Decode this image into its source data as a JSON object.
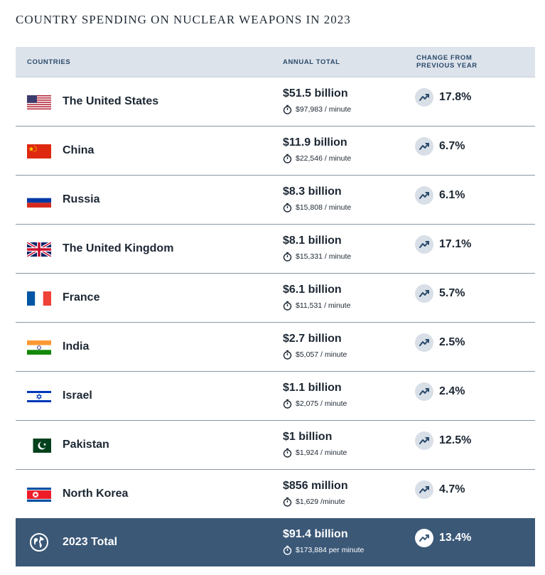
{
  "title": "COUNTRY SPENDING ON NUCLEAR WEAPONS IN 2023",
  "headers": {
    "countries": "COUNTRIES",
    "annual_total": "ANNUAL TOTAL",
    "change_line1": "CHANGE FROM",
    "change_line2": "PREVIOUS YEAR"
  },
  "rows": [
    {
      "country": "The United States",
      "flag": "us-flag-icon",
      "total": "$51.5 billion",
      "per_minute": "$97,983 / minute",
      "change": "17.8%"
    },
    {
      "country": "China",
      "flag": "china-flag-icon",
      "total": "$11.9 billion",
      "per_minute": "$22,546 / minute",
      "change": "6.7%"
    },
    {
      "country": "Russia",
      "flag": "russia-flag-icon",
      "total": "$8.3 billion",
      "per_minute": "$15,808 / minute",
      "change": "6.1%"
    },
    {
      "country": "The United Kingdom",
      "flag": "uk-flag-icon",
      "total": "$8.1 billion",
      "per_minute": "$15,331 / minute",
      "change": "17.1%"
    },
    {
      "country": "France",
      "flag": "france-flag-icon",
      "total": "$6.1 billion",
      "per_minute": "$11,531 / minute",
      "change": "5.7%"
    },
    {
      "country": "India",
      "flag": "india-flag-icon",
      "total": "$2.7 billion",
      "per_minute": "$5,057 / minute",
      "change": "2.5%"
    },
    {
      "country": "Israel",
      "flag": "israel-flag-icon",
      "total": "$1.1 billion",
      "per_minute": "$2,075 / minute",
      "change": "2.4%"
    },
    {
      "country": "Pakistan",
      "flag": "pakistan-flag-icon",
      "total": "$1 billion",
      "per_minute": "$1,924 / minute",
      "change": "12.5%"
    },
    {
      "country": "North Korea",
      "flag": "north-korea-flag-icon",
      "total": "$856 million",
      "per_minute": "$1,629 /minute",
      "change": "4.7%"
    }
  ],
  "total": {
    "label": "2023 Total",
    "icon": "globe-icon",
    "total": "$91.4 billion",
    "per_minute": "$173,884 per minute",
    "change": "13.4%"
  },
  "colors": {
    "header_bg": "#dde3eb",
    "header_text": "#2a4a6b",
    "total_bg": "#3b5877",
    "divider": "#8a96a3"
  },
  "chart_data": {
    "type": "table",
    "title": "COUNTRY SPENDING ON NUCLEAR WEAPONS IN 2023",
    "columns": [
      "COUNTRIES",
      "ANNUAL TOTAL",
      "CHANGE FROM PREVIOUS YEAR"
    ],
    "categories": [
      "The United States",
      "China",
      "Russia",
      "The United Kingdom",
      "France",
      "India",
      "Israel",
      "Pakistan",
      "North Korea"
    ],
    "series": [
      {
        "name": "ANNUAL TOTAL",
        "values": [
          51.5,
          11.9,
          8.3,
          8.1,
          6.1,
          2.7,
          1.1,
          1.0,
          0.856
        ]
      },
      {
        "name": "CHANGE FROM PREVIOUS YEAR",
        "values": [
          17.8,
          6.7,
          6.1,
          17.1,
          5.7,
          2.5,
          2.4,
          12.5,
          4.7
        ]
      }
    ],
    "per_minute": [
      97983,
      22546,
      15808,
      15331,
      11531,
      5057,
      2075,
      1924,
      1629
    ],
    "total": {
      "annual": 91.4,
      "per_minute": 173884,
      "change": 13.4
    }
  }
}
